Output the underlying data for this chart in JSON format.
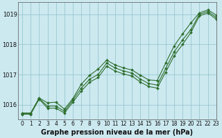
{
  "title": "Graphe pression niveau de la mer (hPa)",
  "background_color": "#cce9f0",
  "grid_color": "#90c0c8",
  "line_color": "#2d6e2d",
  "xlim": [
    -0.5,
    23
  ],
  "ylim": [
    1015.5,
    1019.4
  ],
  "xticks": [
    0,
    1,
    2,
    3,
    4,
    5,
    6,
    7,
    8,
    9,
    10,
    11,
    12,
    13,
    14,
    15,
    16,
    17,
    18,
    19,
    20,
    21,
    22,
    23
  ],
  "yticks": [
    1016,
    1017,
    1018,
    1019
  ],
  "hours": [
    0,
    1,
    2,
    3,
    4,
    5,
    6,
    7,
    8,
    9,
    10,
    11,
    12,
    13,
    14,
    15,
    16,
    17,
    18,
    19,
    20,
    21,
    22,
    23
  ],
  "line_jagged": [
    1015.7,
    1015.7,
    1016.2,
    1015.95,
    1015.95,
    1015.78,
    1016.15,
    1016.55,
    1016.85,
    1017.0,
    1017.38,
    1017.22,
    1017.12,
    1017.05,
    1016.85,
    1016.7,
    1016.65,
    1017.2,
    1017.75,
    1018.15,
    1018.5,
    1019.0,
    1019.1,
    1018.9
  ],
  "line_upper": [
    1015.72,
    1015.72,
    1016.22,
    1016.06,
    1016.08,
    1015.85,
    1016.2,
    1016.68,
    1016.98,
    1017.18,
    1017.48,
    1017.32,
    1017.22,
    1017.15,
    1016.98,
    1016.82,
    1016.8,
    1017.38,
    1017.95,
    1018.35,
    1018.72,
    1019.05,
    1019.15,
    1018.98
  ],
  "line_lower": [
    1015.68,
    1015.68,
    1016.18,
    1015.88,
    1015.88,
    1015.72,
    1016.08,
    1016.45,
    1016.75,
    1016.9,
    1017.28,
    1017.12,
    1017.02,
    1016.95,
    1016.75,
    1016.6,
    1016.55,
    1017.08,
    1017.62,
    1018.0,
    1018.4,
    1018.95,
    1019.05,
    1018.84
  ],
  "title_fontsize": 7,
  "tick_fontsize": 5.5
}
